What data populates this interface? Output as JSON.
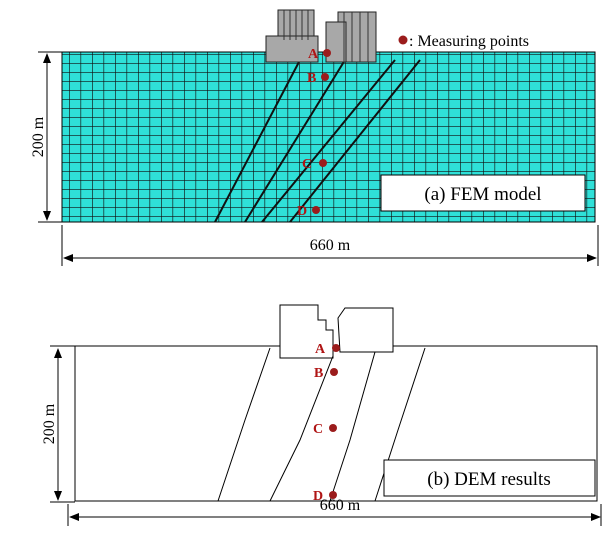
{
  "legend": ": Measuring points",
  "panels": [
    {
      "label": "(a) FEM model",
      "height_label": "200 m",
      "width_label": "660 m",
      "points": [
        "A",
        "B",
        "C",
        "D"
      ]
    },
    {
      "label": "(b) DEM results",
      "height_label": "200 m",
      "width_label": "660 m",
      "points": [
        "A",
        "B",
        "C",
        "D"
      ]
    }
  ]
}
